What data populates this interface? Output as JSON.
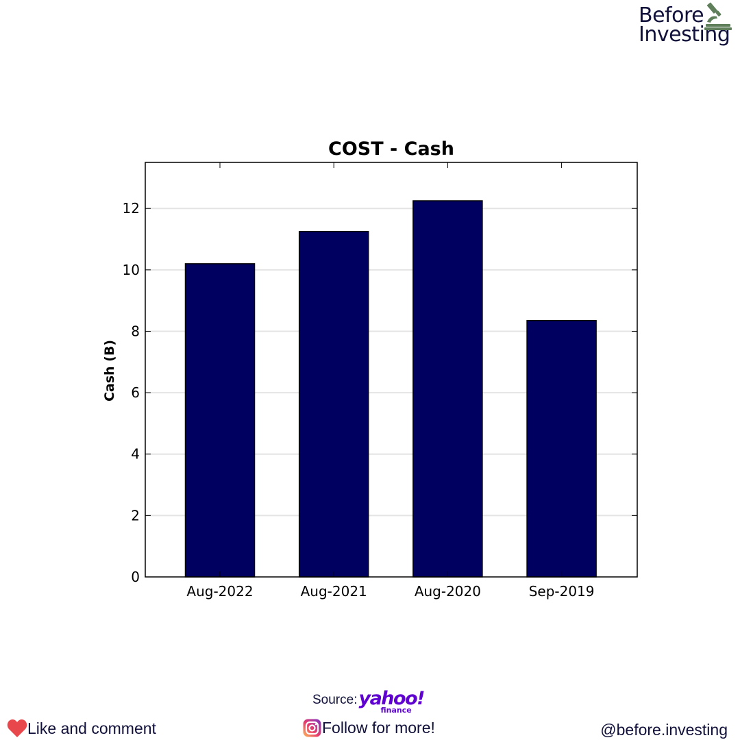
{
  "brand": {
    "line1": "Before",
    "line2": "Investing",
    "icon": "microscope-icon",
    "icon_color": "#5f7f5a",
    "text_color": "#10103a"
  },
  "chart_data": {
    "type": "bar",
    "title": "COST - Cash",
    "xlabel": "",
    "ylabel": "Cash (B)",
    "categories": [
      "Aug-2022",
      "Aug-2021",
      "Aug-2020",
      "Sep-2019"
    ],
    "values": [
      10.2,
      11.25,
      12.25,
      8.35
    ],
    "ylim": [
      0,
      13.5
    ],
    "yticks": [
      0,
      2,
      4,
      6,
      8,
      10,
      12
    ],
    "grid": "horizontal",
    "bar_color": "#000060"
  },
  "footer": {
    "source_label": "Source:",
    "source_logo_word": "yahoo!",
    "source_logo_sub": "finance",
    "source_logo_color": "#5f01d1",
    "like_icon": "heart-icon",
    "like_text": "Like and comment",
    "follow_icon": "instagram-icon",
    "follow_text": "Follow for more!",
    "handle": "@before.investing"
  }
}
